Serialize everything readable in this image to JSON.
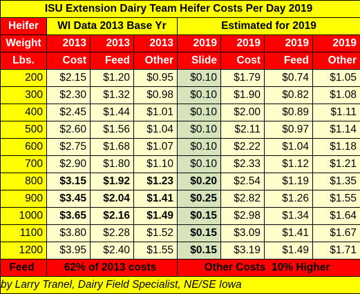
{
  "title": "ISU Extension Dairy Team Heifer Costs Per Day 2019",
  "header_row1": {
    "col1": "Heifer",
    "group1": "WI Data 2013 Base Yr",
    "group2": "Estimated for 2019"
  },
  "header_row2": [
    "Weight",
    "2013",
    "2013",
    "2013",
    "2019",
    "2019",
    "2019",
    "2019"
  ],
  "header_row3": [
    "Lbs.",
    "Cost",
    "Feed",
    "Other",
    "Slide",
    "Cost",
    "Feed",
    "Other"
  ],
  "rows": [
    {
      "weight": "200",
      "c2013": "$2.15",
      "f2013": "$1.20",
      "o2013": "$0.95",
      "slide": "$0.10",
      "c2019": "$1.79",
      "f2019": "$0.74",
      "o2019": "$1.05",
      "bold": false
    },
    {
      "weight": "300",
      "c2013": "$2.30",
      "f2013": "$1.32",
      "o2013": "$0.98",
      "slide": "$0.10",
      "c2019": "$1.90",
      "f2019": "$0.82",
      "o2019": "$1.08",
      "bold": false
    },
    {
      "weight": "400",
      "c2013": "$2.45",
      "f2013": "$1.44",
      "o2013": "$1.01",
      "slide": "$0.10",
      "c2019": "$2.00",
      "f2019": "$0.89",
      "o2019": "$1.11",
      "bold": false
    },
    {
      "weight": "500",
      "c2013": "$2.60",
      "f2013": "$1.56",
      "o2013": "$1.04",
      "slide": "$0.10",
      "c2019": "$2.11",
      "f2019": "$0.97",
      "o2019": "$1.14",
      "bold": false
    },
    {
      "weight": "600",
      "c2013": "$2.75",
      "f2013": "$1.68",
      "o2013": "$1.07",
      "slide": "$0.10",
      "c2019": "$2.22",
      "f2019": "$1.04",
      "o2019": "$1.18",
      "bold": false
    },
    {
      "weight": "700",
      "c2013": "$2.90",
      "f2013": "$1.80",
      "o2013": "$1.10",
      "slide": "$0.10",
      "c2019": "$2.33",
      "f2019": "$1.12",
      "o2019": "$1.21",
      "bold": false
    },
    {
      "weight": "800",
      "c2013": "$3.15",
      "f2013": "$1.92",
      "o2013": "$1.23",
      "slide": "$0.20",
      "c2019": "$2.54",
      "f2019": "$1.19",
      "o2019": "$1.35",
      "bold": true
    },
    {
      "weight": "900",
      "c2013": "$3.45",
      "f2013": "$2.04",
      "o2013": "$1.41",
      "slide": "$0.25",
      "c2019": "$2.82",
      "f2019": "$1.26",
      "o2019": "$1.55",
      "bold": true
    },
    {
      "weight": "1000",
      "c2013": "$3.65",
      "f2013": "$2.16",
      "o2013": "$1.49",
      "slide": "$0.15",
      "c2019": "$2.98",
      "f2019": "$1.34",
      "o2019": "$1.64",
      "bold": true
    },
    {
      "weight": "1100",
      "c2013": "$3.80",
      "f2013": "$2.28",
      "o2013": "$1.52",
      "slide": "$0.15",
      "c2019": "$3.09",
      "f2019": "$1.41",
      "o2019": "$1.67",
      "bold": false,
      "bold_slide": true
    },
    {
      "weight": "1200",
      "c2013": "$3.95",
      "f2013": "$2.40",
      "o2013": "$1.55",
      "slide": "$0.15",
      "c2019": "$3.19",
      "f2019": "$1.49",
      "o2019": "$1.71",
      "bold": false,
      "bold_slide": true
    }
  ],
  "footer": {
    "label": "Feed",
    "note1": "62% of 2013 costs",
    "note2": "Other Costs  10% Higher"
  },
  "byline": "by Larry Tranel, Dairy Field Specialist, NE/SE Iowa"
}
